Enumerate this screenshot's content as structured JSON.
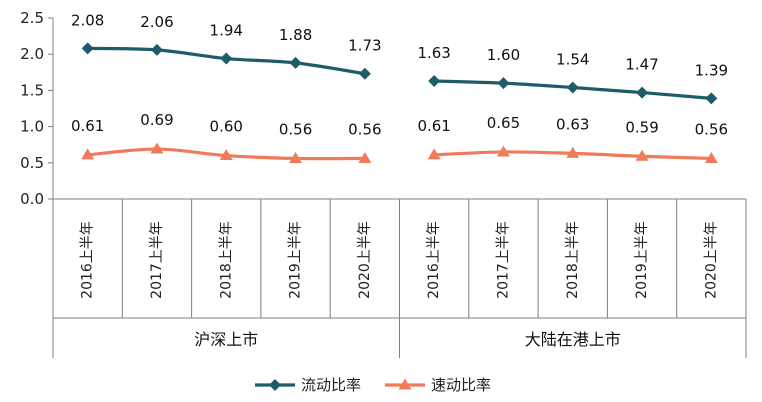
{
  "chart_data": {
    "type": "line",
    "ylim": [
      0,
      2.5
    ],
    "yticks": [
      "0.0",
      "0.5",
      "1.0",
      "1.5",
      "2.0",
      "2.5"
    ],
    "grid": false,
    "legend_position": "bottom",
    "groups": [
      {
        "name": "沪深上市",
        "categories": [
          "2016上半年",
          "2017上半年",
          "2018上半年",
          "2019上半年",
          "2020上半年"
        ],
        "series": [
          {
            "name": "流动比率",
            "values": [
              2.08,
              2.06,
              1.94,
              1.88,
              1.73
            ]
          },
          {
            "name": "速动比率",
            "values": [
              0.61,
              0.69,
              0.6,
              0.56,
              0.56
            ]
          }
        ]
      },
      {
        "name": "大陆在港上市",
        "categories": [
          "2016上半年",
          "2017上半年",
          "2018上半年",
          "2019上半年",
          "2020上半年"
        ],
        "series": [
          {
            "name": "流动比率",
            "values": [
              1.63,
              1.6,
              1.54,
              1.47,
              1.39
            ]
          },
          {
            "name": "速动比率",
            "values": [
              0.61,
              0.65,
              0.63,
              0.59,
              0.56
            ]
          }
        ]
      }
    ],
    "legend": [
      {
        "name": "流动比率",
        "color": "#1f5c6a",
        "marker": "diamond"
      },
      {
        "name": "速动比率",
        "color": "#f07b5a",
        "marker": "triangle"
      }
    ]
  }
}
